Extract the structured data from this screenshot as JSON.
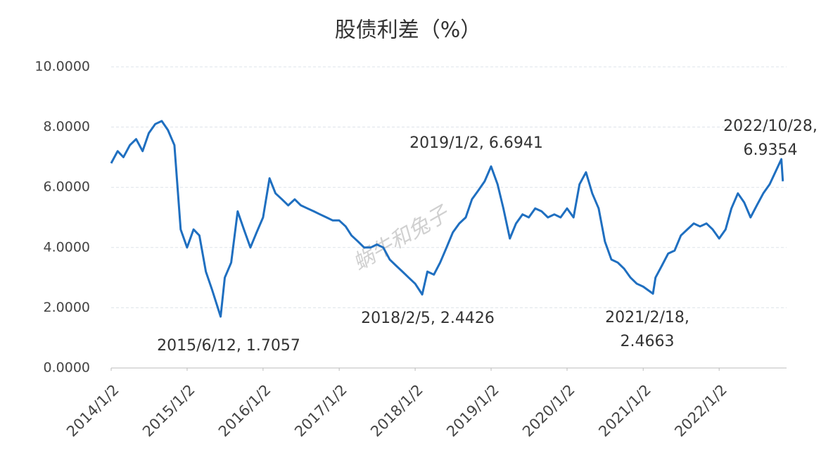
{
  "chart_data": {
    "type": "line",
    "title": "股债利差（%）",
    "watermark": "蜗牛和兔子",
    "color": "#1f6fc0",
    "grid": true,
    "xlim": [
      "2014/1/2",
      "2022/11/22"
    ],
    "xticks": [
      "2014/1/2",
      "2015/1/2",
      "2016/1/2",
      "2017/1/2",
      "2018/1/2",
      "2019/1/2",
      "2020/1/2",
      "2021/1/2",
      "2022/1/2"
    ],
    "ylim": [
      0,
      10
    ],
    "yticks": [
      {
        "value": 0,
        "label": "0.0000"
      },
      {
        "value": 2,
        "label": "2.0000"
      },
      {
        "value": 4,
        "label": "4.0000"
      },
      {
        "value": 6,
        "label": "6.0000"
      },
      {
        "value": 8,
        "label": "8.0000"
      },
      {
        "value": 10,
        "label": "10.0000"
      }
    ],
    "x": [
      "2014/1/2",
      "2014/2/2",
      "2014/3/2",
      "2014/4/2",
      "2014/5/2",
      "2014/6/2",
      "2014/7/2",
      "2014/8/2",
      "2014/9/2",
      "2014/10/2",
      "2014/11/2",
      "2014/12/2",
      "2015/1/2",
      "2015/2/2",
      "2015/3/2",
      "2015/4/2",
      "2015/5/2",
      "2015/6/12",
      "2015/7/2",
      "2015/8/2",
      "2015/9/2",
      "2015/10/2",
      "2015/11/2",
      "2015/12/2",
      "2016/1/2",
      "2016/2/2",
      "2016/3/2",
      "2016/4/2",
      "2016/5/2",
      "2016/6/2",
      "2016/7/2",
      "2016/8/2",
      "2016/9/2",
      "2016/10/2",
      "2016/11/2",
      "2016/12/2",
      "2017/1/2",
      "2017/2/2",
      "2017/3/2",
      "2017/4/2",
      "2017/5/2",
      "2017/6/2",
      "2017/7/2",
      "2017/8/2",
      "2017/9/2",
      "2017/10/2",
      "2017/11/2",
      "2017/12/2",
      "2018/1/2",
      "2018/2/5",
      "2018/3/2",
      "2018/4/2",
      "2018/5/2",
      "2018/6/2",
      "2018/7/2",
      "2018/8/2",
      "2018/9/2",
      "2018/10/2",
      "2018/11/2",
      "2018/12/2",
      "2019/1/2",
      "2019/2/2",
      "2019/3/2",
      "2019/4/2",
      "2019/5/2",
      "2019/6/2",
      "2019/7/2",
      "2019/8/2",
      "2019/9/2",
      "2019/10/2",
      "2019/11/2",
      "2019/12/2",
      "2020/1/2",
      "2020/2/2",
      "2020/3/2",
      "2020/4/2",
      "2020/5/2",
      "2020/6/2",
      "2020/7/2",
      "2020/8/2",
      "2020/9/2",
      "2020/10/2",
      "2020/11/2",
      "2020/12/2",
      "2021/1/2",
      "2021/2/18",
      "2021/3/2",
      "2021/4/2",
      "2021/5/2",
      "2021/6/2",
      "2021/7/2",
      "2021/8/2",
      "2021/9/2",
      "2021/10/2",
      "2021/11/2",
      "2021/12/2",
      "2022/1/2",
      "2022/2/2",
      "2022/3/2",
      "2022/4/2",
      "2022/5/2",
      "2022/6/2",
      "2022/7/2",
      "2022/8/2",
      "2022/9/2",
      "2022/10/28",
      "2022/11/4"
    ],
    "values": [
      6.8,
      7.2,
      7.0,
      7.4,
      7.6,
      7.2,
      7.8,
      8.1,
      8.2,
      7.9,
      7.4,
      4.6,
      4.0,
      4.6,
      4.4,
      3.2,
      2.6,
      1.7057,
      3.0,
      3.5,
      5.2,
      4.6,
      4.0,
      4.5,
      5.0,
      6.3,
      5.8,
      5.6,
      5.4,
      5.6,
      5.4,
      5.3,
      5.2,
      5.1,
      5.0,
      4.9,
      4.9,
      4.7,
      4.4,
      4.2,
      4.0,
      4.0,
      4.1,
      4.0,
      3.6,
      3.4,
      3.2,
      3.0,
      2.8,
      2.4426,
      3.2,
      3.1,
      3.5,
      4.0,
      4.5,
      4.8,
      5.0,
      5.6,
      5.9,
      6.2,
      6.6941,
      6.1,
      5.3,
      4.3,
      4.8,
      5.1,
      5.0,
      5.3,
      5.2,
      5.0,
      5.1,
      5.0,
      5.3,
      5.0,
      6.1,
      6.5,
      5.8,
      5.3,
      4.2,
      3.6,
      3.5,
      3.3,
      3.0,
      2.8,
      2.7,
      2.4663,
      3.0,
      3.4,
      3.8,
      3.9,
      4.4,
      4.6,
      4.8,
      4.7,
      4.8,
      4.6,
      4.3,
      4.6,
      5.3,
      5.8,
      5.5,
      5.0,
      5.4,
      5.8,
      6.1,
      6.9354,
      6.2
    ],
    "annotations": [
      [
        "2015/6/12, 1.7057"
      ],
      [
        "2018/2/5, 2.4426"
      ],
      [
        "2019/1/2, 6.6941"
      ],
      [
        "2021/2/18,",
        "2.4663"
      ],
      [
        "2022/10/28,",
        "6.9354"
      ]
    ]
  }
}
